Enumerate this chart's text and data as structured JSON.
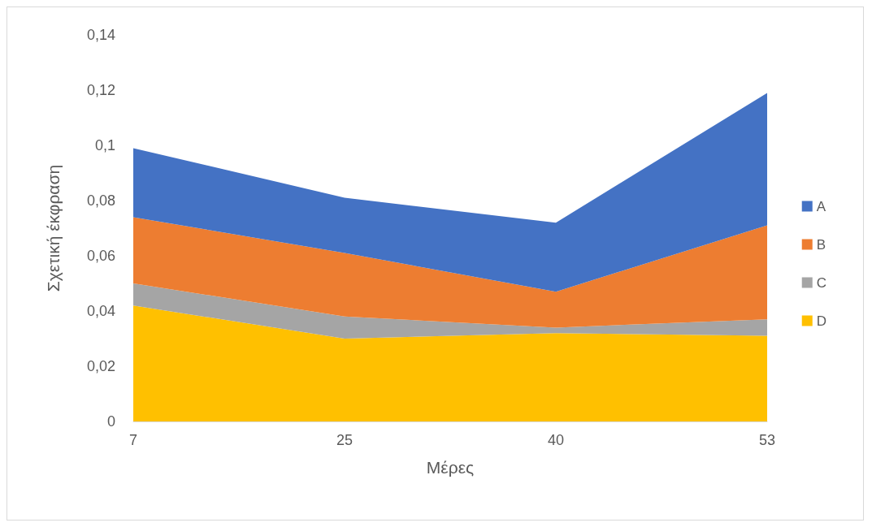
{
  "chart_data": {
    "type": "area",
    "stacked": true,
    "xlabel": "Μέρες",
    "ylabel": "Σχετική έκφραση",
    "categories": [
      "7",
      "25",
      "40",
      "53"
    ],
    "series": [
      {
        "name": "D",
        "color": "#ffc000",
        "values": [
          0.042,
          0.03,
          0.032,
          0.031
        ]
      },
      {
        "name": "C",
        "color": "#a5a5a5",
        "values": [
          0.008,
          0.008,
          0.002,
          0.006
        ]
      },
      {
        "name": "B",
        "color": "#ed7d31",
        "values": [
          0.024,
          0.023,
          0.013,
          0.034
        ]
      },
      {
        "name": "A",
        "color": "#4472c4",
        "values": [
          0.025,
          0.02,
          0.025,
          0.048
        ]
      }
    ],
    "ylim": [
      0,
      0.14
    ],
    "yticks": [
      0,
      {
        "value": 0.02,
        "label": "0,02"
      },
      {
        "value": 0.04,
        "label": "0,04"
      },
      {
        "value": 0.06,
        "label": "0,06"
      },
      {
        "value": 0.08,
        "label": "0,08"
      },
      {
        "value": 0.1,
        "label": "0,1"
      },
      {
        "value": 0.12,
        "label": "0,12"
      },
      {
        "value": 0.14,
        "label": "0,14"
      }
    ],
    "grid": false,
    "legend": "right"
  }
}
